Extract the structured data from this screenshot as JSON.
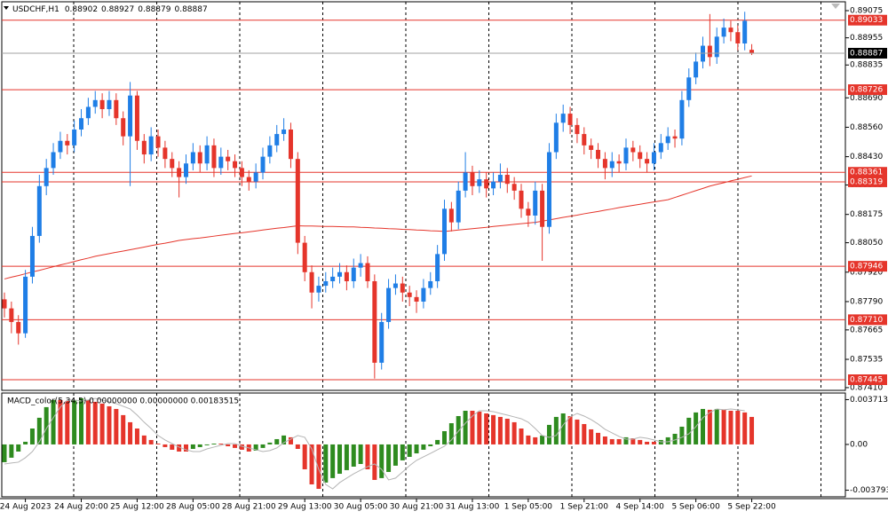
{
  "chart_data": [
    {
      "type": "candlestick",
      "symbol": "USDCHF,H1",
      "categories": [
        null,
        null,
        null,
        "24 Aug 2023",
        null,
        null,
        null,
        null,
        null,
        null,
        null,
        "24 Aug 20:00",
        null,
        null,
        null,
        null,
        null,
        null,
        null,
        "25 Aug 12:00",
        null,
        null,
        null,
        null,
        null,
        null,
        null,
        "28 Aug 05:00",
        null,
        null,
        null,
        null,
        null,
        null,
        null,
        "28 Aug 21:00",
        null,
        null,
        null,
        null,
        null,
        null,
        null,
        "29 Aug 13:00",
        null,
        null,
        null,
        null,
        null,
        null,
        null,
        "30 Aug 05:00",
        null,
        null,
        null,
        null,
        null,
        null,
        null,
        "30 Aug 21:00",
        null,
        null,
        null,
        null,
        null,
        null,
        null,
        "31 Aug 13:00",
        null,
        null,
        null,
        null,
        null,
        null,
        null,
        "1 Sep 05:00",
        null,
        null,
        null,
        null,
        null,
        null,
        null,
        "1 Sep 21:00",
        null,
        null,
        null,
        null,
        null,
        null,
        null,
        "4 Sep 14:00",
        null,
        null,
        null,
        null,
        null,
        null,
        null,
        "5 Sep 06:00",
        null,
        null,
        null,
        null,
        null,
        null,
        null,
        "5 Sep 22:00"
      ],
      "open": [
        0.878,
        0.8776,
        0.877,
        0.8765,
        0.879,
        0.8808,
        0.883,
        0.8838,
        0.8845,
        0.885,
        0.8848,
        0.8855,
        0.886,
        0.8865,
        0.8868,
        0.8864,
        0.8868,
        0.886,
        0.8852,
        0.887,
        0.885,
        0.8844,
        0.8852,
        0.8847,
        0.8842,
        0.8838,
        0.8834,
        0.884,
        0.8845,
        0.884,
        0.8848,
        0.8838,
        0.8843,
        0.8841,
        0.8838,
        0.8834,
        0.8832,
        0.8836,
        0.8843,
        0.8848,
        0.8853,
        0.8855,
        0.8842,
        0.8805,
        0.8792,
        0.8783,
        0.8786,
        0.8788,
        0.879,
        0.8792,
        0.8788,
        0.8794,
        0.8796,
        0.8788,
        0.8752,
        0.877,
        0.8785,
        0.8787,
        0.8783,
        0.8781,
        0.8779,
        0.8785,
        0.8788,
        0.88,
        0.882,
        0.8814,
        0.8828,
        0.8836,
        0.883,
        0.8833,
        0.8829,
        0.8832,
        0.8835,
        0.8831,
        0.8828,
        0.882,
        0.8817,
        0.8828,
        0.8812,
        0.8845,
        0.8858,
        0.8862,
        0.8857,
        0.8853,
        0.8848,
        0.8846,
        0.8842,
        0.8838,
        0.8841,
        0.884,
        0.8847,
        0.8845,
        0.8842,
        0.884,
        0.8845,
        0.8849,
        0.8852,
        0.8851,
        0.8868,
        0.8878,
        0.8885,
        0.8892,
        0.8887,
        0.8896,
        0.89,
        0.8898,
        0.8893,
        0.88902
      ],
      "high": [
        0.8783,
        0.8779,
        0.8773,
        0.8793,
        0.8812,
        0.8835,
        0.8842,
        0.8849,
        0.8854,
        0.8853,
        0.8859,
        0.8864,
        0.8869,
        0.8872,
        0.8871,
        0.8872,
        0.8871,
        0.8863,
        0.8876,
        0.8872,
        0.8853,
        0.8856,
        0.8855,
        0.885,
        0.8845,
        0.8841,
        0.8844,
        0.8849,
        0.8848,
        0.8852,
        0.8851,
        0.8847,
        0.8846,
        0.8844,
        0.8841,
        0.8837,
        0.884,
        0.8847,
        0.8852,
        0.8857,
        0.886,
        0.8858,
        0.8845,
        0.8808,
        0.8795,
        0.879,
        0.8792,
        0.8794,
        0.8796,
        0.8795,
        0.8798,
        0.88,
        0.8799,
        0.8791,
        0.8774,
        0.8789,
        0.8791,
        0.879,
        0.8786,
        0.8784,
        0.8789,
        0.8792,
        0.8804,
        0.8824,
        0.8823,
        0.8832,
        0.8845,
        0.8839,
        0.8837,
        0.8836,
        0.8836,
        0.884,
        0.8838,
        0.8834,
        0.8831,
        0.8823,
        0.8832,
        0.8831,
        0.8849,
        0.8862,
        0.8866,
        0.8865,
        0.886,
        0.8856,
        0.8851,
        0.8849,
        0.8845,
        0.8845,
        0.8844,
        0.8851,
        0.885,
        0.8848,
        0.8845,
        0.8849,
        0.8853,
        0.8856,
        0.8855,
        0.8872,
        0.8882,
        0.8889,
        0.8896,
        0.8906,
        0.89,
        0.8904,
        0.8903,
        0.8901,
        0.8907,
        0.88927
      ],
      "low": [
        0.8772,
        0.8765,
        0.876,
        0.8763,
        0.8787,
        0.8805,
        0.8826,
        0.8835,
        0.8842,
        0.8844,
        0.8845,
        0.8852,
        0.8857,
        0.8862,
        0.886,
        0.8861,
        0.8857,
        0.8848,
        0.883,
        0.8846,
        0.884,
        0.8841,
        0.8843,
        0.8838,
        0.8834,
        0.8825,
        0.8831,
        0.8837,
        0.8836,
        0.8837,
        0.8834,
        0.8835,
        0.8837,
        0.8834,
        0.883,
        0.8828,
        0.8829,
        0.8833,
        0.884,
        0.8845,
        0.885,
        0.8838,
        0.88,
        0.8788,
        0.8776,
        0.8779,
        0.8783,
        0.8785,
        0.8787,
        0.8784,
        0.8785,
        0.879,
        0.8785,
        0.8745,
        0.8749,
        0.8767,
        0.8782,
        0.8779,
        0.8777,
        0.8774,
        0.8776,
        0.8782,
        0.8785,
        0.8797,
        0.881,
        0.8811,
        0.8825,
        0.8826,
        0.8827,
        0.8825,
        0.8826,
        0.8829,
        0.8827,
        0.8824,
        0.8816,
        0.8812,
        0.8813,
        0.8797,
        0.8809,
        0.8842,
        0.8854,
        0.8853,
        0.8849,
        0.8844,
        0.8842,
        0.8838,
        0.8833,
        0.8834,
        0.8836,
        0.8837,
        0.8841,
        0.8838,
        0.8836,
        0.8837,
        0.8842,
        0.8846,
        0.8847,
        0.8848,
        0.8865,
        0.8875,
        0.8882,
        0.8883,
        0.8884,
        0.8893,
        0.8894,
        0.889,
        0.889,
        0.88879
      ],
      "close": [
        0.8776,
        0.877,
        0.8765,
        0.879,
        0.8808,
        0.883,
        0.8838,
        0.8845,
        0.885,
        0.8848,
        0.8855,
        0.886,
        0.8865,
        0.8868,
        0.8864,
        0.8868,
        0.886,
        0.8852,
        0.887,
        0.885,
        0.8844,
        0.8852,
        0.8847,
        0.8842,
        0.8838,
        0.8834,
        0.884,
        0.8845,
        0.884,
        0.8848,
        0.8838,
        0.8843,
        0.8841,
        0.8838,
        0.8834,
        0.8832,
        0.8836,
        0.8843,
        0.8848,
        0.8853,
        0.8855,
        0.8842,
        0.8805,
        0.8792,
        0.8783,
        0.8786,
        0.8788,
        0.879,
        0.8792,
        0.8788,
        0.8794,
        0.8796,
        0.8788,
        0.8752,
        0.877,
        0.8785,
        0.8787,
        0.8783,
        0.8781,
        0.8779,
        0.8785,
        0.8788,
        0.88,
        0.882,
        0.8814,
        0.8828,
        0.8836,
        0.883,
        0.8833,
        0.8829,
        0.8832,
        0.8835,
        0.8831,
        0.8828,
        0.882,
        0.8817,
        0.8828,
        0.8812,
        0.8845,
        0.8858,
        0.8862,
        0.8857,
        0.8853,
        0.8848,
        0.8846,
        0.8842,
        0.8838,
        0.8841,
        0.884,
        0.8847,
        0.8845,
        0.8842,
        0.884,
        0.8845,
        0.8849,
        0.8852,
        0.8851,
        0.8868,
        0.8878,
        0.8885,
        0.8892,
        0.8887,
        0.8896,
        0.89,
        0.8898,
        0.8893,
        0.8903,
        0.88887
      ],
      "up_color": "#1f7ee6",
      "down_color": "#e5352b",
      "moving_average": {
        "color": "#e5352b",
        "values": [
          0.8789,
          0.87898,
          0.87905,
          0.87913,
          0.87921,
          0.87928,
          0.87936,
          0.87944,
          0.87952,
          0.87959,
          0.87967,
          0.87975,
          0.87982,
          0.8799,
          0.87996,
          0.88002,
          0.88008,
          0.88013,
          0.88019,
          0.88025,
          0.88031,
          0.88037,
          0.88043,
          0.88048,
          0.88054,
          0.8806,
          0.88064,
          0.88068,
          0.88071,
          0.88075,
          0.88079,
          0.88083,
          0.88087,
          0.88091,
          0.88094,
          0.88098,
          0.88102,
          0.88106,
          0.8811,
          0.88114,
          0.88117,
          0.88121,
          0.88125,
          0.88124,
          0.88124,
          0.88123,
          0.88122,
          0.88122,
          0.88121,
          0.8812,
          0.8812,
          0.88118,
          0.88117,
          0.88115,
          0.88114,
          0.88112,
          0.88111,
          0.88109,
          0.88108,
          0.88106,
          0.88105,
          0.88103,
          0.88102,
          0.881,
          0.88103,
          0.88106,
          0.88109,
          0.88112,
          0.88115,
          0.88118,
          0.88122,
          0.88125,
          0.88128,
          0.88131,
          0.88134,
          0.88137,
          0.8814,
          0.88145,
          0.88151,
          0.88156,
          0.88162,
          0.88167,
          0.88172,
          0.88178,
          0.88183,
          0.88188,
          0.88194,
          0.88199,
          0.88205,
          0.8821,
          0.88215,
          0.8822,
          0.88225,
          0.8823,
          0.88235,
          0.8824,
          0.8825,
          0.8826,
          0.8827,
          0.8828,
          0.8829,
          0.883,
          0.88308,
          0.88315,
          0.88323,
          0.8833,
          0.88338,
          0.88345
        ]
      },
      "levels": [
        0.89033,
        0.88726,
        0.88361,
        0.88319,
        0.87946,
        {
          "value": 0.8771,
          "label": "0.87710"
        },
        0.87445
      ],
      "level_color": "#e5352b",
      "ylim": [
        0.87398,
        0.89122
      ],
      "yticks": [
        0.89075,
        0.88955,
        0.88835,
        {
          "value": 0.8869,
          "label": "0.88690"
        },
        {
          "value": 0.8856,
          "label": "0.88560"
        },
        {
          "value": 0.8843,
          "label": "0.88430"
        },
        0.88305,
        0.88175,
        {
          "value": 0.8805,
          "label": "0.88050"
        },
        {
          "value": 0.8792,
          "label": "0.87920"
        },
        {
          "value": 0.8779,
          "label": "0.87790"
        },
        0.87665,
        0.87535,
        {
          "value": 0.8741,
          "label": "0.87410"
        }
      ]
    },
    {
      "type": "macd",
      "title": "MACD_color(5,34,5) 0.00000000 0.00000000 0.00183515",
      "values": [
        -0.00147,
        -0.0011,
        -0.00059,
        0.00022,
        0.00132,
        0.00221,
        0.00309,
        0.00368,
        0.00368,
        0.0036,
        0.00368,
        0.00382,
        0.00368,
        0.00353,
        0.00338,
        0.00316,
        0.00294,
        0.00243,
        0.00184,
        0.00132,
        0.00074,
        0.00037,
        7e-05,
        -0.00022,
        -0.00044,
        -0.00059,
        -0.00059,
        -0.00037,
        -0.00022,
        -7e-05,
        7e-05,
        7e-05,
        -0.00015,
        -0.00029,
        -0.00044,
        -0.00059,
        -0.00051,
        -0.00029,
        0.00015,
        0.00044,
        0.00074,
        0.00059,
        -0.00037,
        -0.00206,
        -0.00331,
        -0.00368,
        -0.00316,
        -0.00279,
        -0.00243,
        -0.00213,
        -0.00184,
        -0.00162,
        -0.00206,
        -0.00294,
        -0.00279,
        -0.00228,
        -0.00176,
        -0.00132,
        -0.00103,
        -0.00074,
        -0.00044,
        -0.00015,
        0.00037,
        0.0011,
        0.00176,
        0.00235,
        0.00279,
        0.00279,
        0.00272,
        0.00257,
        0.00243,
        0.00228,
        0.00213,
        0.00184,
        0.00132,
        0.00074,
        0.00059,
        0.00074,
        0.00162,
        0.00228,
        0.00257,
        0.00235,
        0.00206,
        0.00169,
        0.00125,
        0.00096,
        0.00066,
        0.00044,
        0.00044,
        0.00059,
        0.00051,
        0.00037,
        0.00022,
        0.00022,
        0.00037,
        0.00059,
        0.00088,
        0.00147,
        0.00221,
        0.00265,
        0.00294,
        0.00287,
        0.00294,
        0.00287,
        0.00279,
        0.00279,
        0.00265,
        0.00228
      ],
      "up_color": "#2e8b1f",
      "down_color": "#e5352b",
      "signal": {
        "color": "#b4b4b4",
        "values": [
          -0.00162,
          -0.00154,
          -0.00147,
          -0.0011,
          -0.00059,
          0.00022,
          0.00132,
          0.00221,
          0.00309,
          0.00368,
          0.00368,
          0.0036,
          0.00368,
          0.00382,
          0.00368,
          0.00353,
          0.00338,
          0.00316,
          0.00294,
          0.00243,
          0.00184,
          0.00132,
          0.00074,
          0.00037,
          7e-05,
          -0.00022,
          -0.00044,
          -0.00059,
          -0.00059,
          -0.00037,
          -0.00022,
          -7e-05,
          7e-05,
          7e-05,
          -0.00015,
          -0.00029,
          -0.00044,
          -0.00059,
          -0.00051,
          -0.00029,
          0.00015,
          0.00044,
          0.00074,
          0.00059,
          -0.00037,
          -0.00206,
          -0.00331,
          -0.00368,
          -0.00316,
          -0.00279,
          -0.00243,
          -0.00213,
          -0.00184,
          -0.00162,
          -0.00206,
          -0.00294,
          -0.00279,
          -0.00228,
          -0.00176,
          -0.00132,
          -0.00103,
          -0.00074,
          -0.00044,
          -0.00015,
          0.00037,
          0.0011,
          0.00176,
          0.00235,
          0.00279,
          0.00279,
          0.00272,
          0.00257,
          0.00243,
          0.00228,
          0.00213,
          0.00184,
          0.00132,
          0.00074,
          0.00059,
          0.00074,
          0.00162,
          0.00228,
          0.00257,
          0.00235,
          0.00206,
          0.00169,
          0.00125,
          0.00096,
          0.00066,
          0.00044,
          0.00044,
          0.00059,
          0.00051,
          0.00037,
          0.00022,
          0.00022,
          0.00037,
          0.00059,
          0.00088,
          0.00147,
          0.00221,
          0.00265,
          0.00294,
          0.00287,
          0.00294,
          0.00287,
          0.00279
        ]
      },
      "ylim": [
        -0.00434,
        0.00426
      ],
      "yticks": [
        0.0037132,
        {
          "value": 0,
          "label": "0.00"
        },
        -0.003793
      ]
    }
  ]
}
